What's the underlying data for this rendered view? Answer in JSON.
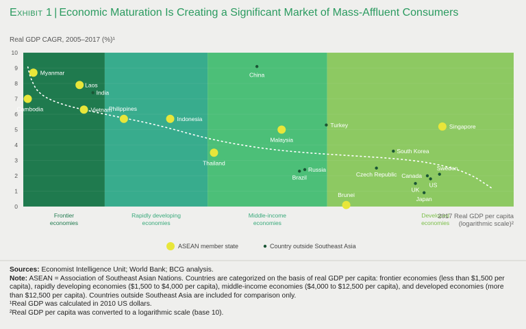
{
  "header": {
    "exhibit": "Exhibit 1",
    "separator": "|",
    "title": "Economic Maturation Is Creating a Significant Market of Mass-Affluent Consumers"
  },
  "chart_data": {
    "type": "scatter",
    "title": "Economic Maturation Is Creating a Significant Market of Mass-Affluent Consumers",
    "ylabel": "Real GDP CAGR, 2005–2017 (%)¹",
    "xlabel": [
      "2017 Real GDP per capita",
      "(logarithmic scale)²"
    ],
    "ylim": [
      0,
      10
    ],
    "yticks": [
      0,
      1,
      2,
      3,
      4,
      5,
      6,
      7,
      8,
      9,
      10
    ],
    "x_unit": "2017 real GDP per capita (US$, log10 scale)",
    "xlim": [
      690,
      74000
    ],
    "bands": [
      {
        "name": "frontier",
        "label": [
          "Frontier",
          "economies"
        ],
        "from": 690,
        "to": 1500,
        "color": "#1f7a4e"
      },
      {
        "name": "rapidly-developing",
        "label": [
          "Rapidly developing",
          "economies"
        ],
        "from": 1500,
        "to": 4000,
        "color": "#38ac8d"
      },
      {
        "name": "middle-income",
        "label": [
          "Middle-income",
          "economies"
        ],
        "from": 4000,
        "to": 12500,
        "color": "#4cbf78"
      },
      {
        "name": "developed",
        "label": [
          "Developed",
          "economies"
        ],
        "from": 12500,
        "to": 74000,
        "color": "#8dc962"
      }
    ],
    "series": [
      {
        "name": "ASEAN member state",
        "color": "#e8e63a",
        "points": [
          {
            "label": "Myanmar",
            "x": 760,
            "y": 8.7
          },
          {
            "label": "Cambodia",
            "x": 720,
            "y": 7.0
          },
          {
            "label": "Laos",
            "x": 1180,
            "y": 7.9
          },
          {
            "label": "Vietnam",
            "x": 1230,
            "y": 6.3
          },
          {
            "label": "Philippines",
            "x": 1800,
            "y": 5.7
          },
          {
            "label": "Indonesia",
            "x": 2800,
            "y": 5.7
          },
          {
            "label": "Thailand",
            "x": 4250,
            "y": 3.5
          },
          {
            "label": "Malaysia",
            "x": 8100,
            "y": 5.0
          },
          {
            "label": "Brunei",
            "x": 15000,
            "y": 0.1
          },
          {
            "label": "Singapore",
            "x": 37500,
            "y": 5.2
          }
        ]
      },
      {
        "name": "Country outside Southeast Asia",
        "color": "#1a5535",
        "points": [
          {
            "label": "India",
            "x": 1340,
            "y": 7.4
          },
          {
            "label": "China",
            "x": 6400,
            "y": 9.1
          },
          {
            "label": "Brazil",
            "x": 9600,
            "y": 2.3
          },
          {
            "label": "Russia",
            "x": 10100,
            "y": 2.4
          },
          {
            "label": "Turkey",
            "x": 12400,
            "y": 5.3
          },
          {
            "label": "South Korea",
            "x": 23500,
            "y": 3.6
          },
          {
            "label": "Czech Republic",
            "x": 20000,
            "y": 2.5
          },
          {
            "label": "UK",
            "x": 29000,
            "y": 1.5
          },
          {
            "label": "Canada",
            "x": 32500,
            "y": 2.0
          },
          {
            "label": "US",
            "x": 33500,
            "y": 1.8
          },
          {
            "label": "Japan",
            "x": 31500,
            "y": 0.9
          },
          {
            "label": "Sweden",
            "x": 36500,
            "y": 2.1
          }
        ]
      }
    ],
    "trendline": {
      "style": "dashed",
      "color": "#ffffff",
      "points": [
        [
          720,
          9.1
        ],
        [
          740,
          8.3
        ],
        [
          800,
          7.3
        ],
        [
          1000,
          6.6
        ],
        [
          1500,
          6.0
        ],
        [
          2500,
          5.3
        ],
        [
          4000,
          4.4
        ],
        [
          6500,
          3.8
        ],
        [
          10000,
          3.5
        ],
        [
          16000,
          3.3
        ],
        [
          25000,
          3.1
        ],
        [
          35000,
          2.8
        ],
        [
          48000,
          2.2
        ],
        [
          60000,
          1.2
        ]
      ]
    }
  },
  "legend": {
    "asean": "ASEAN member state",
    "outside": "Country outside Southeast Asia"
  },
  "footer": {
    "sources_label": "Sources:",
    "sources_text": "Economist Intelligence Unit; World Bank; BCG analysis.",
    "note_label": "Note:",
    "note_text": "ASEAN = Association of Southeast Asian Nations. Countries are categorized on the basis of real GDP per capita: frontier economies (less than $1,500 per capita), rapidly developing economies ($1,500 to $4,000 per capita), middle-income economies ($4,000 to $12,500 per capita), and developed economies (more than $12,500 per capita). Countries outside Southeast Asia are included for comparison only.",
    "footnote1": "¹Real GDP was calculated in 2010 US dollars.",
    "footnote2": "²Real GDP per capita was converted to a logarithmic scale (base 10)."
  }
}
